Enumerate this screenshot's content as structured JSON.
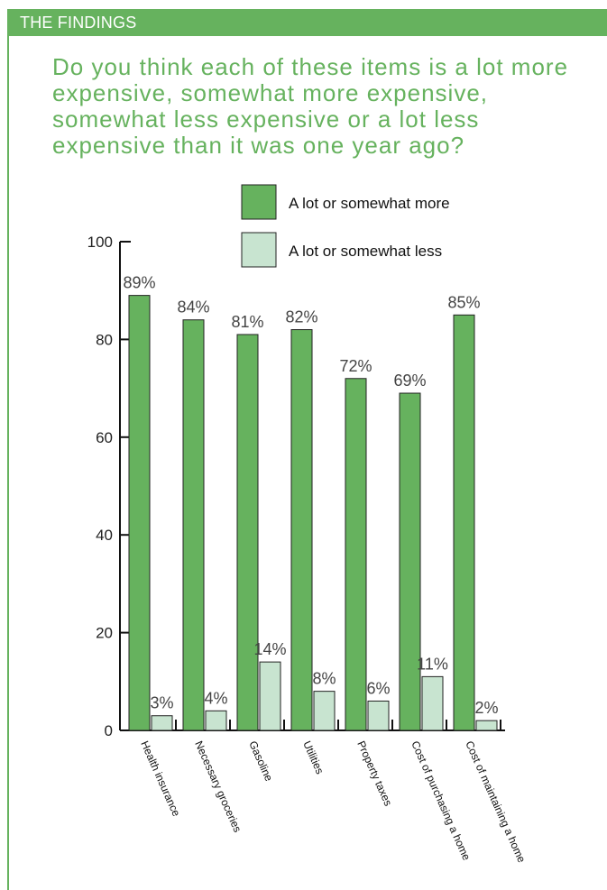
{
  "header": {
    "title": "THE FINDINGS"
  },
  "question": "Do you think each of these items is a lot more expensive, somewhat more expensive, somewhat less expensive or a lot less expensive than it was one year ago?",
  "colors": {
    "accent_green": "#66b25e",
    "series_more": "#66b25e",
    "series_less": "#c8e4d0",
    "bar_stroke": "#222222"
  },
  "chart_data": {
    "type": "bar",
    "categories": [
      "Health insurance",
      "Necessary groceries",
      "Gasoline",
      "Utilities",
      "Property taxes",
      "Cost of purchasing a home",
      "Cost of maintaining a home"
    ],
    "series": [
      {
        "name": "A lot or somewhat more",
        "values": [
          89,
          84,
          81,
          82,
          72,
          69,
          85
        ],
        "labels": [
          "89%",
          "84%",
          "81%",
          "82%",
          "72%",
          "69%",
          "85%"
        ]
      },
      {
        "name": "A lot or somewhat less",
        "values": [
          3,
          4,
          14,
          8,
          6,
          11,
          2
        ],
        "labels": [
          "3%",
          "4%",
          "14%",
          "8%",
          "6%",
          "11%",
          "2%"
        ]
      }
    ],
    "ylim": [
      0,
      100
    ],
    "yticks": [
      0,
      20,
      40,
      60,
      80,
      100
    ],
    "ytick_labels": [
      "0",
      "20",
      "40",
      "60",
      "80",
      "100"
    ],
    "grid": false,
    "legend_position": "top-right",
    "xlabel": "",
    "ylabel": ""
  }
}
